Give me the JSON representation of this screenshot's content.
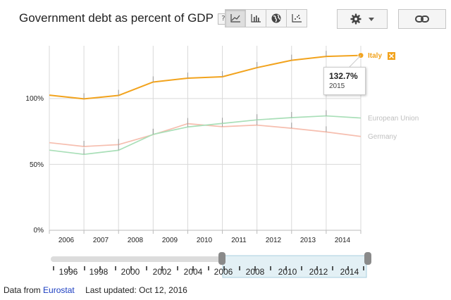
{
  "title": "Government debt as percent of GDP",
  "help_label": "?",
  "toolbar": {
    "buttons": [
      "line-chart",
      "bar-chart",
      "map",
      "scatter-chart"
    ],
    "active": "line-chart",
    "settings_icon": "gear-icon",
    "link_icon": "link-icon"
  },
  "colors": {
    "italy": "#f2a31d",
    "eu": "#a9dfb8",
    "germany": "#f6beaf"
  },
  "tooltip": {
    "value": "132.7%",
    "year": "2015"
  },
  "footer": {
    "prefix": "Data from",
    "source": "Eurostat",
    "updated": "Last updated: Oct 12, 2016"
  },
  "timeline": {
    "labels": [
      "1996",
      "1998",
      "2000",
      "2002",
      "2004",
      "2006",
      "2008",
      "2010",
      "2012",
      "2014"
    ],
    "selected_range": [
      "2006",
      "2015"
    ]
  },
  "chart_data": {
    "type": "line",
    "title": "Government debt as percent of GDP",
    "x": [
      2006,
      2007,
      2008,
      2009,
      2010,
      2011,
      2012,
      2013,
      2014,
      2015
    ],
    "x_tick_labels": [
      "2006",
      "2007",
      "2008",
      "2009",
      "2010",
      "2011",
      "2012",
      "2013",
      "2014"
    ],
    "y_tick_labels": [
      "0%",
      "50%",
      "100%"
    ],
    "ylim": [
      0,
      140
    ],
    "series": [
      {
        "name": "Italy",
        "color": "#f2a31d",
        "values": [
          102.5,
          99.7,
          102.3,
          112.5,
          115.4,
          116.5,
          123.4,
          129.0,
          131.9,
          132.7
        ]
      },
      {
        "name": "European Union",
        "color": "#a9dfb8",
        "values": [
          60.8,
          57.6,
          60.7,
          72.8,
          78.4,
          81.1,
          83.8,
          85.5,
          86.8,
          85.2
        ]
      },
      {
        "name": "Germany",
        "color": "#f6beaf",
        "values": [
          66.5,
          63.6,
          65.0,
          72.6,
          80.9,
          78.6,
          79.8,
          77.4,
          74.6,
          71.2
        ]
      }
    ],
    "grid": true
  }
}
